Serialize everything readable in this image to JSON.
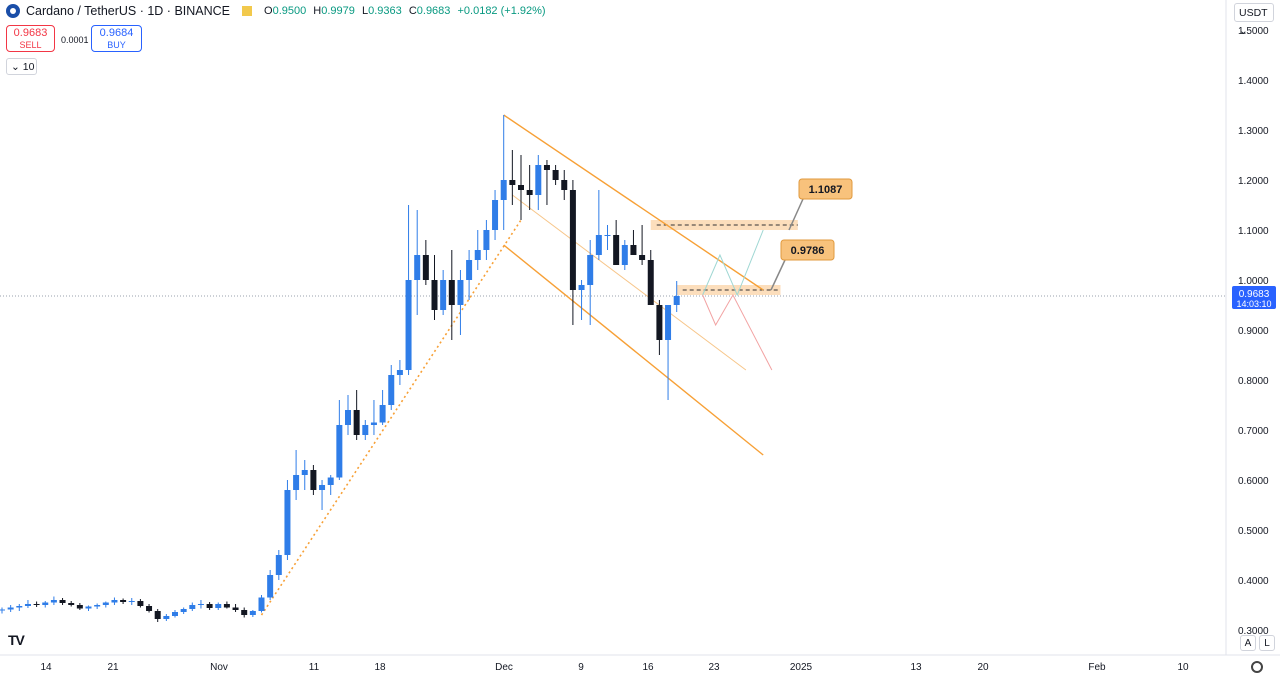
{
  "header": {
    "symbol": "Cardano / TetherUS · 1D · BINANCE",
    "ohlc": [
      {
        "key": "O",
        "value": "0.9500"
      },
      {
        "key": "H",
        "value": "0.9979"
      },
      {
        "key": "L",
        "value": "0.9363"
      },
      {
        "key": "C",
        "value": "0.9683"
      },
      {
        "key": "",
        "value": "+0.0182 (+1.92%)"
      }
    ]
  },
  "trade": {
    "sell_price": "0.9683",
    "sell_label": "SELL",
    "spread": "0.0001",
    "buy_price": "0.9684",
    "buy_label": "BUY"
  },
  "volume_toggle": "10",
  "currency": "USDT",
  "price_tag": {
    "price": "0.9683",
    "countdown": "14:03:10"
  },
  "annotations": {
    "upper_label": "1.1087",
    "lower_label": "0.9786"
  },
  "scale_buttons": {
    "auto": "A",
    "log": "L"
  },
  "colors": {
    "up": "#2f7de8",
    "down": "#131722",
    "orange": "#f7a036",
    "zone": "#fbd3a6",
    "tag": "#2962ff"
  },
  "chart_data": {
    "type": "candlestick",
    "ylim": [
      0.28,
      1.52
    ],
    "y_ticks": [
      "0.3000",
      "0.4000",
      "0.5000",
      "0.6000",
      "0.7000",
      "0.8000",
      "0.9000",
      "1.0000",
      "1.1000",
      "1.2000",
      "1.3000",
      "1.4000",
      "1.5000"
    ],
    "x_ticks": [
      "14",
      "21",
      "Nov",
      "11",
      "18",
      "Dec",
      "9",
      "16",
      "23",
      "2025",
      "13",
      "20",
      "Feb",
      "10"
    ],
    "candles": [
      [
        0.339,
        0.345,
        0.333,
        0.341
      ],
      [
        0.341,
        0.35,
        0.336,
        0.345
      ],
      [
        0.345,
        0.352,
        0.338,
        0.348
      ],
      [
        0.348,
        0.36,
        0.344,
        0.352
      ],
      [
        0.352,
        0.357,
        0.346,
        0.35
      ],
      [
        0.35,
        0.358,
        0.345,
        0.355
      ],
      [
        0.355,
        0.367,
        0.35,
        0.36
      ],
      [
        0.36,
        0.364,
        0.35,
        0.354
      ],
      [
        0.354,
        0.358,
        0.347,
        0.35
      ],
      [
        0.35,
        0.354,
        0.34,
        0.343
      ],
      [
        0.343,
        0.349,
        0.338,
        0.347
      ],
      [
        0.347,
        0.353,
        0.342,
        0.35
      ],
      [
        0.35,
        0.357,
        0.345,
        0.355
      ],
      [
        0.355,
        0.365,
        0.35,
        0.36
      ],
      [
        0.36,
        0.363,
        0.352,
        0.356
      ],
      [
        0.356,
        0.364,
        0.35,
        0.358
      ],
      [
        0.358,
        0.362,
        0.345,
        0.348
      ],
      [
        0.348,
        0.352,
        0.335,
        0.338
      ],
      [
        0.338,
        0.342,
        0.316,
        0.322
      ],
      [
        0.322,
        0.332,
        0.318,
        0.328
      ],
      [
        0.328,
        0.34,
        0.325,
        0.336
      ],
      [
        0.336,
        0.345,
        0.332,
        0.342
      ],
      [
        0.342,
        0.355,
        0.338,
        0.35
      ],
      [
        0.35,
        0.36,
        0.343,
        0.352
      ],
      [
        0.352,
        0.356,
        0.34,
        0.344
      ],
      [
        0.344,
        0.355,
        0.34,
        0.352
      ],
      [
        0.352,
        0.357,
        0.343,
        0.345
      ],
      [
        0.345,
        0.352,
        0.336,
        0.34
      ],
      [
        0.34,
        0.345,
        0.325,
        0.33
      ],
      [
        0.33,
        0.34,
        0.326,
        0.338
      ],
      [
        0.338,
        0.37,
        0.335,
        0.365
      ],
      [
        0.365,
        0.42,
        0.36,
        0.41
      ],
      [
        0.41,
        0.46,
        0.4,
        0.45
      ],
      [
        0.45,
        0.6,
        0.44,
        0.58
      ],
      [
        0.58,
        0.66,
        0.56,
        0.61
      ],
      [
        0.61,
        0.64,
        0.58,
        0.62
      ],
      [
        0.62,
        0.63,
        0.57,
        0.58
      ],
      [
        0.58,
        0.6,
        0.54,
        0.59
      ],
      [
        0.59,
        0.61,
        0.57,
        0.605
      ],
      [
        0.605,
        0.76,
        0.6,
        0.71
      ],
      [
        0.71,
        0.77,
        0.69,
        0.74
      ],
      [
        0.74,
        0.78,
        0.68,
        0.69
      ],
      [
        0.69,
        0.72,
        0.68,
        0.71
      ],
      [
        0.71,
        0.76,
        0.69,
        0.715
      ],
      [
        0.715,
        0.78,
        0.71,
        0.75
      ],
      [
        0.75,
        0.83,
        0.74,
        0.81
      ],
      [
        0.81,
        0.84,
        0.79,
        0.82
      ],
      [
        0.82,
        1.15,
        0.81,
        1.0
      ],
      [
        1.0,
        1.14,
        0.93,
        1.05
      ],
      [
        1.05,
        1.08,
        0.99,
        1.0
      ],
      [
        1.0,
        1.05,
        0.92,
        0.94
      ],
      [
        0.94,
        1.02,
        0.93,
        1.0
      ],
      [
        1.0,
        1.06,
        0.88,
        0.95
      ],
      [
        0.95,
        1.02,
        0.89,
        1.0
      ],
      [
        1.0,
        1.06,
        0.96,
        1.04
      ],
      [
        1.04,
        1.1,
        1.02,
        1.06
      ],
      [
        1.06,
        1.12,
        1.04,
        1.1
      ],
      [
        1.1,
        1.18,
        1.08,
        1.16
      ],
      [
        1.16,
        1.33,
        1.1,
        1.2
      ],
      [
        1.2,
        1.26,
        1.15,
        1.19
      ],
      [
        1.19,
        1.25,
        1.12,
        1.18
      ],
      [
        1.18,
        1.23,
        1.14,
        1.17
      ],
      [
        1.17,
        1.25,
        1.14,
        1.23
      ],
      [
        1.23,
        1.24,
        1.15,
        1.22
      ],
      [
        1.22,
        1.23,
        1.19,
        1.2
      ],
      [
        1.2,
        1.22,
        1.16,
        1.18
      ],
      [
        1.18,
        1.2,
        0.91,
        0.98
      ],
      [
        0.98,
        1.0,
        0.92,
        0.99
      ],
      [
        0.99,
        1.08,
        0.91,
        1.05
      ],
      [
        1.05,
        1.18,
        1.04,
        1.09
      ],
      [
        1.09,
        1.11,
        1.06,
        1.09
      ],
      [
        1.09,
        1.12,
        1.03,
        1.03
      ],
      [
        1.03,
        1.08,
        1.02,
        1.07
      ],
      [
        1.07,
        1.1,
        1.05,
        1.05
      ],
      [
        1.05,
        1.11,
        1.03,
        1.04
      ],
      [
        1.04,
        1.06,
        0.96,
        0.95
      ],
      [
        0.95,
        0.96,
        0.85,
        0.88
      ],
      [
        0.88,
        0.95,
        0.76,
        0.95
      ],
      [
        0.95,
        0.998,
        0.936,
        0.968
      ]
    ],
    "channel": {
      "upper": [
        [
          58,
          1.33
        ],
        [
          88,
          0.98
        ]
      ],
      "lower": [
        [
          58,
          1.07
        ],
        [
          88,
          0.65
        ]
      ]
    },
    "trend_line": [
      [
        30,
        0.33
      ],
      [
        60,
        1.12
      ]
    ],
    "zones": [
      {
        "from": 75,
        "to": 92,
        "low": 1.1,
        "high": 1.12,
        "label_value": "1.1087"
      },
      {
        "from": 78,
        "to": 90,
        "low": 0.97,
        "high": 0.99,
        "label_value": "0.9786"
      }
    ]
  }
}
